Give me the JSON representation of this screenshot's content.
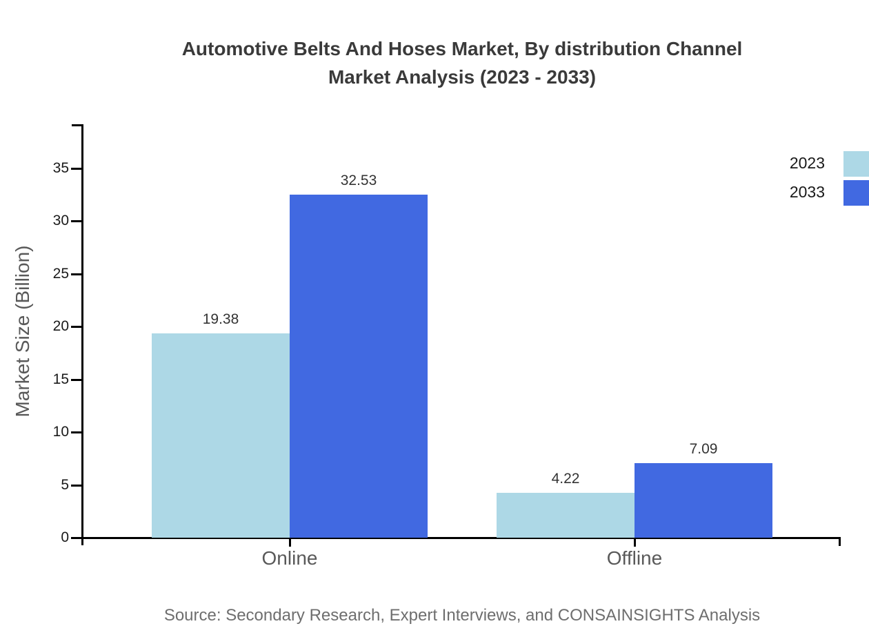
{
  "page": {
    "title_line1": "Automotive Belts And Hoses Market, By distribution Channel",
    "title_line2": "Market Analysis (2023 - 2033)",
    "source": "Source: Secondary Research, Expert Interviews, and CONSAINSIGHTS Analysis"
  },
  "chart_data": {
    "type": "bar",
    "title": "Automotive Belts And Hoses Market, By distribution Channel Market Analysis (2023 - 2033)",
    "categories": [
      "Online",
      "Offline"
    ],
    "series": [
      {
        "name": "2023",
        "color": "#ADD8E6",
        "values": [
          19.38,
          4.22
        ]
      },
      {
        "name": "2033",
        "color": "#4169E1",
        "values": [
          32.53,
          7.09
        ]
      }
    ],
    "xlabel": "",
    "ylabel": "Market Size (Billion)",
    "ylim": [
      0,
      39.2
    ],
    "yticks": [
      0,
      5,
      10,
      15,
      20,
      25,
      30,
      35
    ],
    "grid": false,
    "legend_position": "top-right",
    "value_labels_shown": true,
    "value_label_format": "2dp",
    "colors": {
      "axis": "#000000",
      "title_text": "#3A3A3A",
      "tick_label_text": "#1A1A1A",
      "category_label_text": "#595959",
      "value_label_text": "#333333",
      "source_text": "#6E6E6E"
    }
  }
}
